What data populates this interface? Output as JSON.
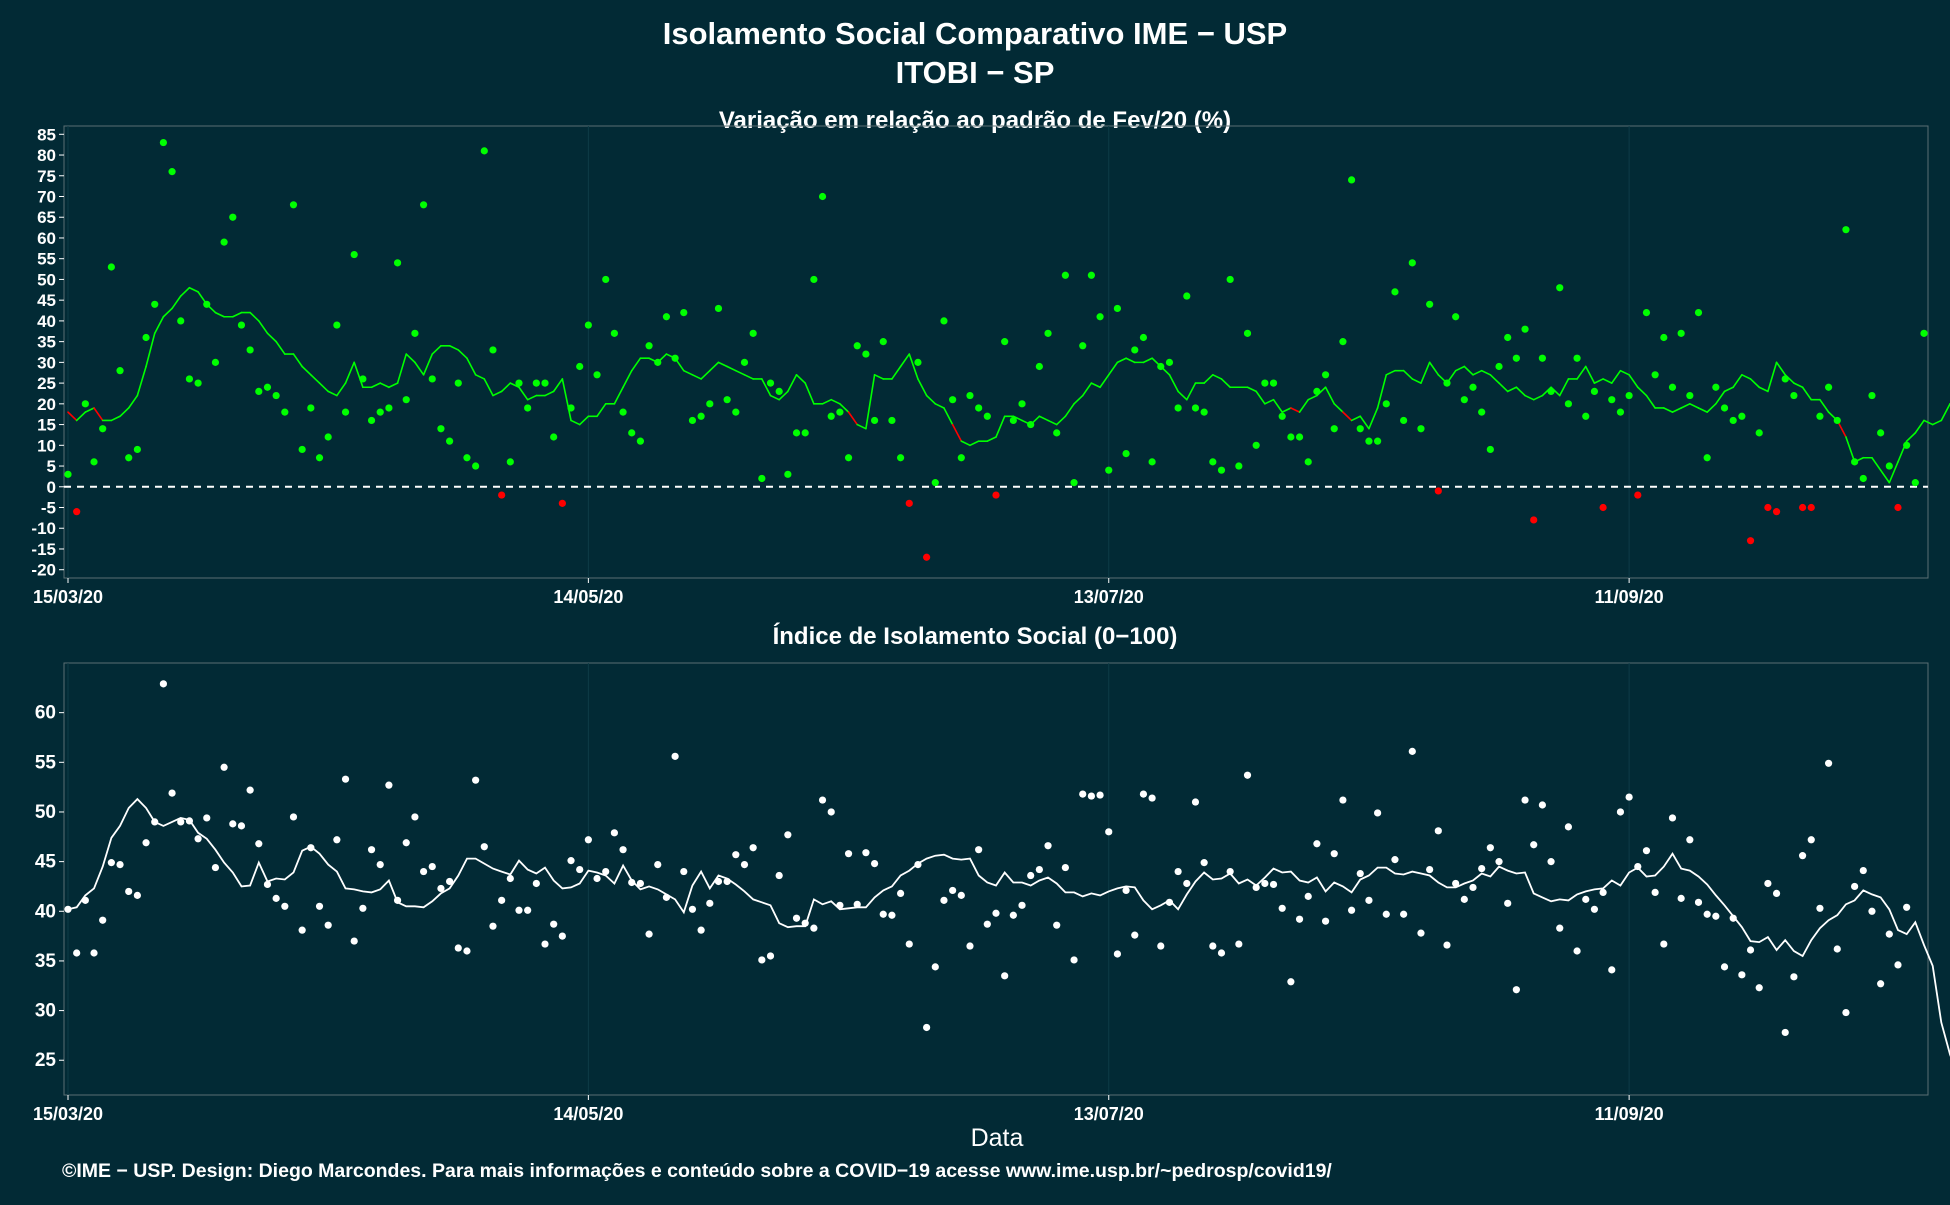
{
  "title_line1": "Isolamento Social Comparativo IME − USP",
  "title_line2": "ITOBI − SP",
  "xlabel": "Data",
  "footer": "©IME − USP. Design: Diego Marcondes. Para mais informações e conteúdo sobre a COVID−19 acesse www.ime.usp.br/~pedrosp/covid19/",
  "colors": {
    "background": "#022a35",
    "positive": "#00ff00",
    "negative": "#ff0000",
    "index": "#ffffff",
    "zero_line": "#ffffff"
  },
  "chart_data": [
    {
      "type": "scatter",
      "title": "Variação em relação ao padrão de Fev/20 (%)",
      "x_start": "2020-03-15",
      "x_ticks": [
        "15/03/20",
        "14/05/20",
        "13/07/20",
        "11/09/20"
      ],
      "y_ticks": [
        -20,
        -15,
        -10,
        -5,
        0,
        5,
        10,
        15,
        20,
        25,
        30,
        35,
        40,
        45,
        50,
        55,
        60,
        65,
        70,
        75,
        80,
        85
      ],
      "ylim": [
        -22,
        87
      ],
      "reference_line": 0,
      "series": [
        {
          "values": [
            3,
            -6,
            20,
            6,
            14,
            53,
            28,
            7,
            9,
            36,
            44,
            83,
            76,
            40,
            26,
            25,
            44,
            30,
            59,
            65,
            39,
            33,
            23,
            24,
            22,
            18,
            68,
            9,
            19,
            7,
            12,
            39,
            18,
            56,
            26,
            16,
            18,
            19,
            54,
            21,
            37,
            68,
            26,
            14,
            11,
            25,
            7,
            5,
            81,
            33,
            -2,
            6,
            25,
            19,
            25,
            25,
            12,
            -4,
            19,
            29,
            39,
            27,
            50,
            37,
            18,
            13,
            11,
            34,
            30,
            41,
            31,
            42,
            16,
            17,
            20,
            43,
            21,
            18,
            30,
            37,
            2,
            25,
            23,
            3,
            13,
            13,
            50,
            70,
            17,
            18,
            7,
            34,
            32,
            16,
            35,
            16,
            7,
            -4,
            30,
            -17,
            1,
            40,
            21,
            7,
            22,
            19,
            17,
            -2,
            35,
            16,
            20,
            15,
            29,
            37,
            13,
            51,
            1,
            34,
            51,
            41,
            4,
            43,
            8,
            33,
            36,
            6,
            29,
            30,
            19,
            46,
            19,
            18,
            6,
            4,
            50,
            5,
            37,
            10,
            25,
            25,
            17,
            12,
            12,
            6,
            23,
            27,
            14,
            35,
            74,
            14,
            11,
            11,
            20,
            47,
            16,
            54,
            14,
            44,
            -1,
            25,
            41,
            21,
            24,
            18,
            9,
            29,
            36,
            31,
            38,
            -8,
            31,
            23,
            48,
            20,
            31,
            17,
            23,
            -5,
            21,
            18,
            22,
            -2,
            42,
            27,
            36,
            24,
            37,
            22,
            42,
            7,
            24,
            19,
            16,
            17,
            -13,
            13,
            -5,
            -6,
            26,
            22,
            -5,
            -5,
            17,
            24,
            16,
            62,
            6,
            2,
            22,
            13,
            5,
            -5,
            10,
            1,
            37
          ]
        }
      ],
      "trend": [
        18,
        16,
        18,
        19,
        16,
        16,
        17,
        19,
        22,
        29,
        37,
        41,
        43,
        46,
        48,
        47,
        44,
        42,
        41,
        41,
        42,
        42,
        40,
        37,
        35,
        32,
        32,
        29,
        27,
        25,
        23,
        22,
        25,
        30,
        24,
        24,
        25,
        24,
        25,
        32,
        30,
        27,
        32,
        34,
        34,
        33,
        31,
        27,
        26,
        22,
        23,
        25,
        24,
        21,
        22,
        22,
        23,
        26,
        16,
        15,
        17,
        17,
        20,
        20,
        24,
        28,
        31,
        31,
        30,
        32,
        31,
        28,
        27,
        26,
        28,
        30,
        29,
        28,
        27,
        26,
        26,
        22,
        21,
        23,
        27,
        25,
        20,
        20,
        21,
        20,
        18,
        15,
        14,
        27,
        26,
        26,
        29,
        32,
        26,
        22,
        20,
        19,
        15,
        11,
        10,
        11,
        11,
        12,
        17,
        17,
        16,
        15,
        17,
        16,
        15,
        17,
        20,
        22,
        25,
        24,
        27,
        30,
        31,
        30,
        30,
        31,
        29,
        27,
        23,
        21,
        25,
        25,
        27,
        26,
        24,
        24,
        24,
        23,
        20,
        21,
        18,
        19,
        18,
        21,
        22,
        24,
        20,
        18,
        16,
        17,
        14,
        19,
        27,
        28,
        28,
        26,
        25,
        30,
        27,
        25,
        28,
        29,
        27,
        28,
        27,
        25,
        23,
        24,
        22,
        21,
        22,
        24,
        22,
        26,
        26,
        29,
        25,
        26,
        25,
        28,
        27,
        24,
        22,
        19,
        19,
        18,
        19,
        20,
        19,
        18,
        20,
        23,
        24,
        27,
        26,
        24,
        23,
        30,
        27,
        25,
        24,
        21,
        21,
        18,
        16,
        12,
        6,
        7,
        7,
        4,
        1,
        6,
        11,
        13,
        16,
        15,
        16,
        20,
        20,
        17,
        14,
        8,
        7,
        14
      ]
    },
    {
      "type": "scatter",
      "title": "Índice de Isolamento Social (0−100)",
      "x_start": "2020-03-15",
      "x_ticks": [
        "15/03/20",
        "14/05/20",
        "13/07/20",
        "11/09/20"
      ],
      "y_ticks": [
        25,
        30,
        35,
        40,
        45,
        50,
        55,
        60
      ],
      "ylim": [
        21.5,
        65
      ],
      "series": [
        {
          "values": [
            40.2,
            35.8,
            41.1,
            35.8,
            39.1,
            44.9,
            44.7,
            42,
            41.6,
            46.9,
            49,
            62.9,
            51.9,
            49,
            49.1,
            47.3,
            49.4,
            44.4,
            54.5,
            48.8,
            48.6,
            52.2,
            46.8,
            42.7,
            41.3,
            40.5,
            49.5,
            38.1,
            46.4,
            40.5,
            38.6,
            47.2,
            53.3,
            37,
            40.3,
            46.2,
            44.7,
            52.7,
            41.1,
            46.9,
            49.5,
            44,
            44.5,
            42.3,
            43,
            36.3,
            36,
            53.2,
            46.5,
            38.5,
            41.1,
            43.3,
            40.1,
            40.1,
            42.8,
            36.7,
            38.7,
            37.5,
            45.1,
            44.2,
            47.2,
            43.3,
            44,
            47.9,
            46.2,
            42.9,
            42.8,
            37.7,
            44.7,
            41.4,
            55.6,
            44,
            40.2,
            38.1,
            40.8,
            43,
            43,
            45.7,
            44.7,
            46.4,
            35.1,
            35.5,
            43.6,
            47.7,
            39.3,
            38.8,
            38.3,
            51.2,
            50,
            40.6,
            45.8,
            40.7,
            45.9,
            44.8,
            39.7,
            39.6,
            41.8,
            36.7,
            44.7,
            28.3,
            34.4,
            41.1,
            42.1,
            41.6,
            36.5,
            46.2,
            38.7,
            39.8,
            33.5,
            39.6,
            40.6,
            43.6,
            44.2,
            46.6,
            38.6,
            44.4,
            35.1,
            51.8,
            51.6,
            51.7,
            48,
            35.7,
            42.1,
            37.6,
            51.8,
            51.4,
            36.5,
            40.9,
            44,
            42.8,
            51,
            44.9,
            36.5,
            35.8,
            44,
            36.7,
            53.7,
            42.4,
            42.8,
            42.7,
            40.3,
            32.9,
            39.2,
            41.5,
            46.8,
            39,
            45.8,
            51.2,
            40.1,
            43.8,
            41.1,
            49.9,
            39.7,
            45.2,
            39.7,
            56.1,
            37.8,
            44.2,
            48.1,
            36.6,
            42.8,
            41.2,
            42.4,
            44.3,
            46.4,
            45,
            40.8,
            32.1,
            51.2,
            46.7,
            50.7,
            45,
            38.3,
            48.5,
            36,
            41.2,
            40.2,
            41.9,
            34.1,
            50,
            51.5,
            44.5,
            46.1,
            41.9,
            36.7,
            49.4,
            41.3,
            47.2,
            40.9,
            39.7,
            39.5,
            34.4,
            39.3,
            33.6,
            36.1,
            32.3,
            42.8,
            41.8,
            27.8,
            33.4,
            45.6,
            47.2,
            40.3,
            54.9,
            36.2,
            29.8,
            42.5,
            44.1,
            40,
            32.7,
            37.7,
            34.6,
            40.4
          ]
        }
      ],
      "trend": [
        40.2,
        40.4,
        41.6,
        42.3,
        44.5,
        47.4,
        48.6,
        50.4,
        51.3,
        50.4,
        49,
        48.6,
        49,
        49.4,
        49.2,
        47.9,
        47.3,
        46.2,
        44.9,
        43.9,
        42.5,
        42.6,
        44.9,
        43,
        43.3,
        43.2,
        43.9,
        46.1,
        46.5,
        45.8,
        44.7,
        44,
        42.3,
        42.2,
        42,
        41.9,
        42.2,
        43.1,
        40.9,
        40.5,
        40.5,
        40.4,
        41,
        41.8,
        42.3,
        43.6,
        45.3,
        45.3,
        44.8,
        44.3,
        44,
        43.7,
        45.1,
        44.2,
        43.8,
        44.4,
        43.1,
        42.3,
        42.4,
        42.8,
        44.1,
        43.9,
        43.6,
        42.8,
        44.6,
        43.1,
        42.2,
        42.5,
        42.2,
        41.7,
        41.2,
        39.9,
        42.6,
        44,
        42.3,
        43.6,
        43.3,
        42.7,
        42,
        41.2,
        40.9,
        40.6,
        38.8,
        38.4,
        38.5,
        38.5,
        41.2,
        40.7,
        41,
        40.2,
        40.3,
        40.4,
        40.4,
        41.4,
        42.1,
        42.5,
        43.6,
        44.1,
        44.8,
        45.3,
        45.6,
        45.7,
        45.3,
        45.2,
        45.3,
        43.6,
        42.9,
        42.6,
        43.9,
        42.9,
        42.9,
        42.6,
        43.1,
        43.4,
        42.8,
        41.9,
        41.9,
        41.5,
        41.8,
        41.6,
        42,
        42.3,
        42.5,
        42.4,
        41.1,
        40.2,
        40.6,
        41.1,
        40.2,
        41.7,
        43,
        43.9,
        43.2,
        43.3,
        43.8,
        42.8,
        43.2,
        42.6,
        43.4,
        44.3,
        43.9,
        44,
        43.1,
        42.9,
        43.4,
        42,
        42.9,
        42.5,
        41.9,
        43.2,
        43.6,
        44.4,
        44.4,
        43.8,
        43.7,
        44,
        43.8,
        43.6,
        42.9,
        42.4,
        42.4,
        42.8,
        43.1,
        43.8,
        43.5,
        44.5,
        44.1,
        43.8,
        43.9,
        41.8,
        41.4,
        41,
        41.2,
        41.1,
        41.7,
        42,
        42.2,
        42.3,
        43.1,
        42.6,
        43.9,
        44.4,
        43.5,
        43.6,
        44.5,
        45.8,
        44.3,
        44.1,
        43.5,
        42.7,
        41.6,
        40.6,
        39.5,
        38.4,
        37,
        36.9,
        37.4,
        36.1,
        37.1,
        36,
        35.5,
        37.1,
        38.3,
        39.1,
        39.6,
        40.7,
        41.1,
        42.1,
        41.7,
        41.4,
        40.2,
        38.1,
        37.7,
        38.9,
        36.6,
        34.5,
        28.8,
        25.6,
        23.2
      ]
    }
  ]
}
